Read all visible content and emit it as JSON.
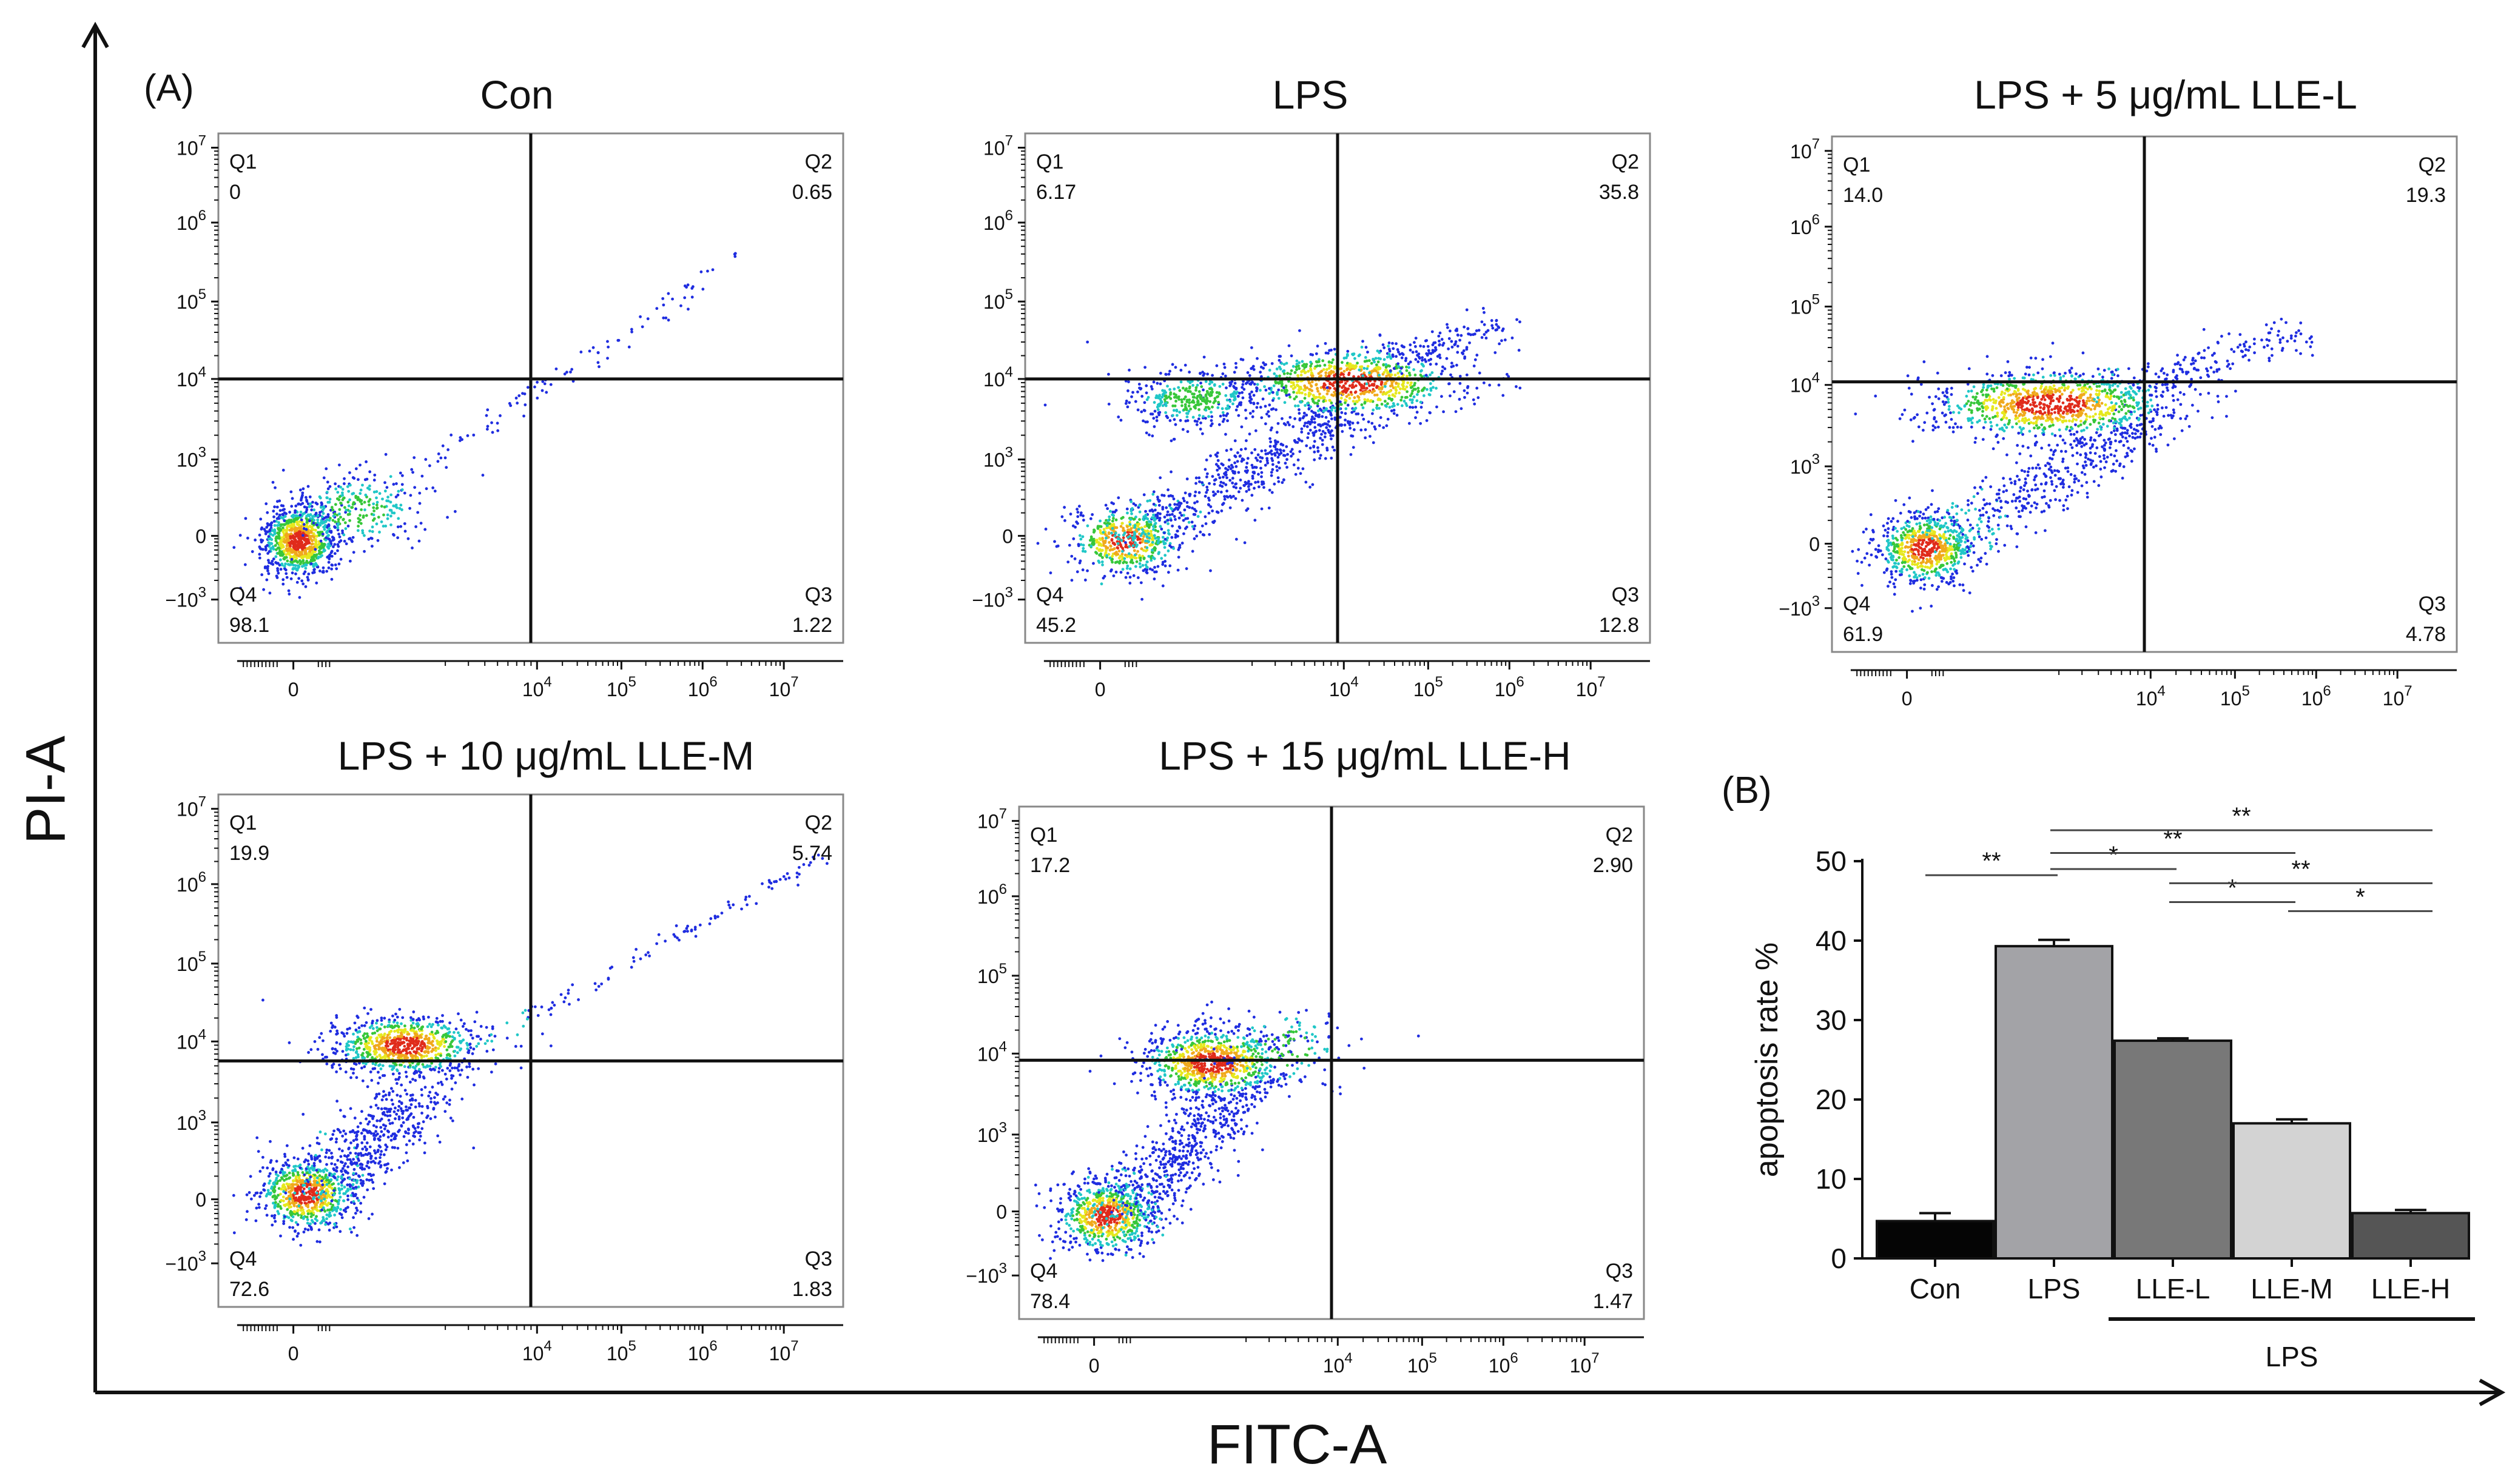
{
  "figure": {
    "panel_a_label": "(A)",
    "panel_b_label": "(B)",
    "x_axis_title": "FITC-A",
    "y_axis_title": "PI-A"
  },
  "chart_data": [
    {
      "type": "scatter",
      "title": "Con",
      "x_tick_labels": [
        "0",
        "10^4",
        "10^5",
        "10^6",
        "10^7"
      ],
      "y_tick_labels": [
        "-10^3",
        "0",
        "10^3",
        "10^4",
        "10^5",
        "10^6",
        "10^7"
      ],
      "gate_x": "~10^4",
      "gate_y": "~10^4",
      "quadrants": [
        {
          "name": "Q1",
          "value": "0"
        },
        {
          "name": "Q2",
          "value": "0.65"
        },
        {
          "name": "Q3",
          "value": "1.22"
        },
        {
          "name": "Q4",
          "value": "98.1"
        }
      ],
      "populations": [
        "live cells clustered near origin",
        "sparse diagonal tail toward upper right"
      ]
    },
    {
      "type": "scatter",
      "title": "LPS",
      "x_tick_labels": [
        "0",
        "10^4",
        "10^5",
        "10^6",
        "10^7"
      ],
      "y_tick_labels": [
        "-10^3",
        "0",
        "10^3",
        "10^4",
        "10^5",
        "10^6",
        "10^7"
      ],
      "gate_x": "~10^4",
      "gate_y": "~10^4",
      "quadrants": [
        {
          "name": "Q1",
          "value": "6.17"
        },
        {
          "name": "Q2",
          "value": "35.8"
        },
        {
          "name": "Q3",
          "value": "12.8"
        },
        {
          "name": "Q4",
          "value": "45.2"
        }
      ],
      "populations": [
        "lower cluster near origin",
        "dense PI-positive band around 10^4"
      ]
    },
    {
      "type": "scatter",
      "title": "LPS + 5 μg/mL LLE-L",
      "x_tick_labels": [
        "0",
        "10^4",
        "10^5",
        "10^6",
        "10^7"
      ],
      "y_tick_labels": [
        "-10^3",
        "0",
        "10^3",
        "10^4",
        "10^5",
        "10^6",
        "10^7"
      ],
      "gate_x": "~10^4",
      "gate_y": "~10^4",
      "quadrants": [
        {
          "name": "Q1",
          "value": "14.0"
        },
        {
          "name": "Q2",
          "value": "19.3"
        },
        {
          "name": "Q3",
          "value": "4.78"
        },
        {
          "name": "Q4",
          "value": "61.9"
        }
      ],
      "populations": [
        "lower cluster near origin",
        "PI-positive band around 10^4"
      ]
    },
    {
      "type": "scatter",
      "title": "LPS + 10 μg/mL LLE-M",
      "x_tick_labels": [
        "0",
        "10^4",
        "10^5",
        "10^6",
        "10^7"
      ],
      "y_tick_labels": [
        "-10^3",
        "0",
        "10^3",
        "10^4",
        "10^5",
        "10^6",
        "10^7"
      ],
      "gate_x": "~10^4",
      "gate_y": "~10^4",
      "quadrants": [
        {
          "name": "Q1",
          "value": "19.9"
        },
        {
          "name": "Q2",
          "value": "5.74"
        },
        {
          "name": "Q3",
          "value": "1.83"
        },
        {
          "name": "Q4",
          "value": "72.6"
        }
      ],
      "populations": [
        "lower cluster near origin",
        "PI-positive cluster left of gate",
        "sparse diagonal tail"
      ]
    },
    {
      "type": "scatter",
      "title": "LPS + 15 μg/mL LLE-H",
      "x_tick_labels": [
        "0",
        "10^4",
        "10^5",
        "10^6",
        "10^7"
      ],
      "y_tick_labels": [
        "-10^3",
        "0",
        "10^3",
        "10^4",
        "10^5",
        "10^6",
        "10^7"
      ],
      "gate_x": "~10^4",
      "gate_y": "~10^4",
      "quadrants": [
        {
          "name": "Q1",
          "value": "17.2"
        },
        {
          "name": "Q2",
          "value": "2.90"
        },
        {
          "name": "Q3",
          "value": "1.47"
        },
        {
          "name": "Q4",
          "value": "78.4"
        }
      ],
      "populations": [
        "lower cluster near origin",
        "PI-positive cluster left of gate"
      ]
    },
    {
      "type": "bar",
      "title": "",
      "ylabel": "apoptosis rate %",
      "xlabel": "",
      "ylim": [
        0,
        50
      ],
      "yticks": [
        0,
        10,
        20,
        30,
        40,
        50
      ],
      "categories": [
        "Con",
        "LPS",
        "LLE-L",
        "LLE-M",
        "LLE-H"
      ],
      "values": [
        4.7,
        39.3,
        27.4,
        17.0,
        5.7
      ],
      "errors": [
        1.0,
        0.8,
        0.3,
        0.5,
        0.4
      ],
      "colors": [
        "#050505",
        "#a3a3a7",
        "#787878",
        "#d3d3d3",
        "#555555"
      ],
      "group_label": "LPS",
      "group_members": [
        "LLE-L",
        "LLE-M",
        "LLE-H"
      ],
      "significance": [
        {
          "from": "Con",
          "to": "LPS",
          "label": "**"
        },
        {
          "from": "LPS",
          "to": "LLE-L",
          "label": "*"
        },
        {
          "from": "LPS",
          "to": "LLE-M",
          "label": "**"
        },
        {
          "from": "LPS",
          "to": "LLE-H",
          "label": "**"
        },
        {
          "from": "LLE-L",
          "to": "LLE-M",
          "label": "*"
        },
        {
          "from": "LLE-L",
          "to": "LLE-H",
          "label": "**"
        },
        {
          "from": "LLE-M",
          "to": "LLE-H",
          "label": "*"
        }
      ]
    }
  ]
}
